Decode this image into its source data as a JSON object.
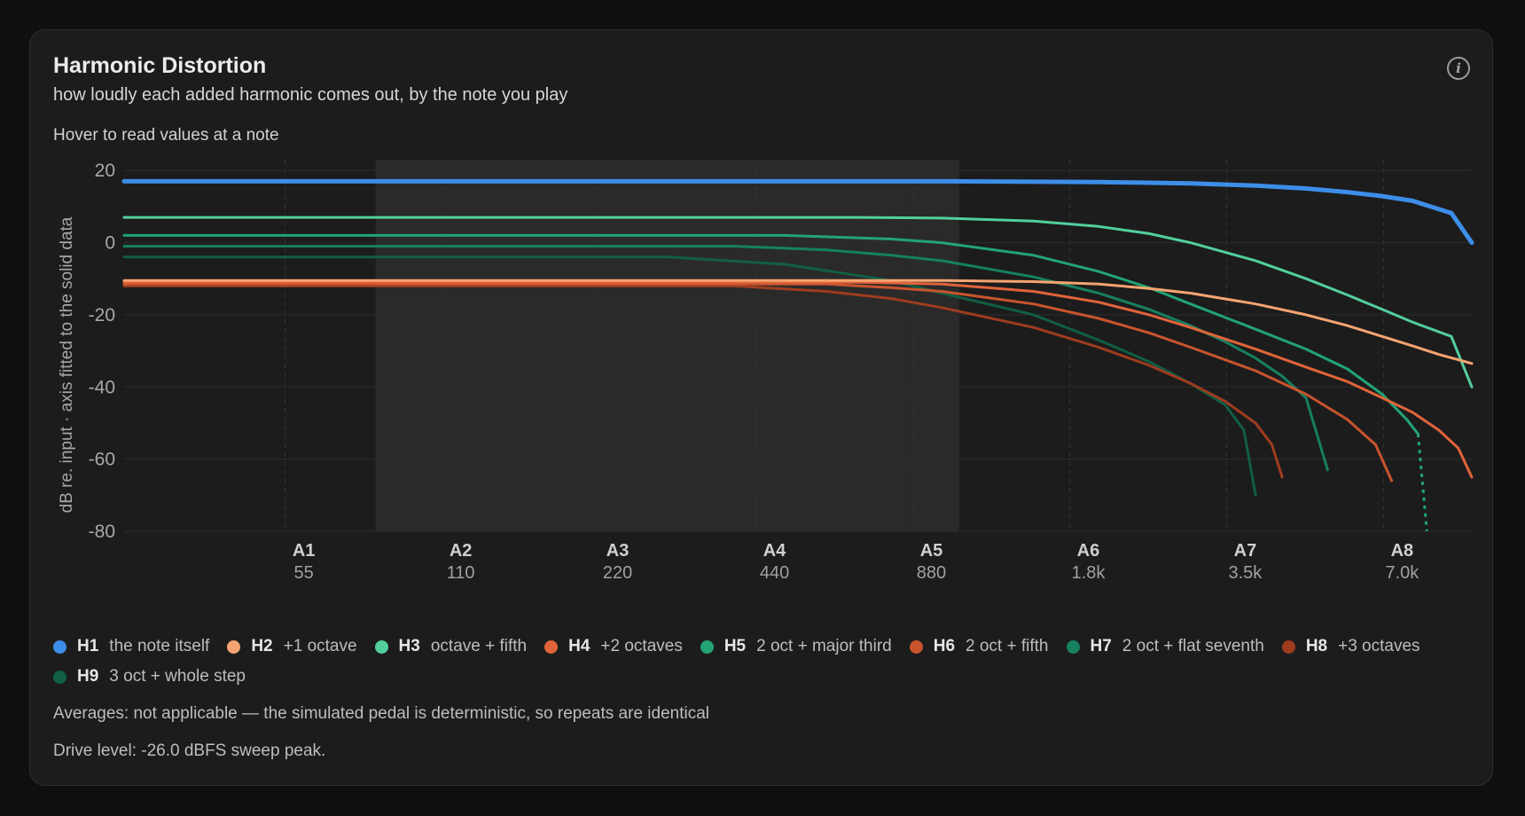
{
  "header": {
    "title": "Harmonic Distortion",
    "subtitle": "how loudly each added harmonic comes out, by the note you play",
    "hover_hint": "Hover to read values at a note",
    "info_glyph": "i"
  },
  "footer": {
    "averages_note": "Averages: not applicable — the simulated pedal is deterministic, so repeats are identical",
    "drive_note": "Drive level: -26.0 dBFS sweep peak."
  },
  "chart_data": {
    "type": "line",
    "title": "Harmonic Distortion",
    "ylabel": "dB re. input · axis fitted to the solid data",
    "xlabel": "",
    "x_scale": "log",
    "xlim": [
      27,
      10400
    ],
    "ylim": [
      -80,
      23
    ],
    "y_ticks": [
      20,
      0,
      -20,
      -40,
      -60,
      -80
    ],
    "y_tick_labels": [
      "20",
      "0",
      "-20",
      "-40",
      "-60",
      "-80"
    ],
    "x_ticks": [
      {
        "x": 55,
        "note": "A1",
        "freq": "55"
      },
      {
        "x": 110,
        "note": "A2",
        "freq": "110"
      },
      {
        "x": 220,
        "note": "A3",
        "freq": "220"
      },
      {
        "x": 440,
        "note": "A4",
        "freq": "440"
      },
      {
        "x": 880,
        "note": "A5",
        "freq": "880"
      },
      {
        "x": 1760,
        "note": "A6",
        "freq": "1.8k"
      },
      {
        "x": 3520,
        "note": "A7",
        "freq": "3.5k"
      },
      {
        "x": 7040,
        "note": "A8",
        "freq": "7.0k"
      }
    ],
    "highlight_range": [
      82,
      1080
    ],
    "grid": true,
    "legend_position": "bottom",
    "series": [
      {
        "name": "H1",
        "desc": "the note itself",
        "color": "#3d8ee8",
        "x": [
          27,
          1000,
          2000,
          3000,
          4000,
          5000,
          6000,
          7000,
          8000,
          9500,
          10400
        ],
        "y": [
          17,
          17,
          16.8,
          16.4,
          15.8,
          15,
          14,
          12.9,
          11.6,
          8.2,
          0
        ]
      },
      {
        "name": "H2",
        "desc": "+1 octave",
        "color": "#f5a471",
        "x": [
          27,
          1000,
          1500,
          2000,
          2500,
          3000,
          4000,
          5000,
          6000,
          7000,
          8000,
          9000,
          10400
        ],
        "y": [
          -10.5,
          -10.5,
          -10.8,
          -11.5,
          -12.7,
          -14,
          -17,
          -20,
          -23,
          -26,
          -28.6,
          -31,
          -33.5
        ]
      },
      {
        "name": "H3",
        "desc": "octave + fifth",
        "color": "#52cf9d",
        "x": [
          27,
          700,
          1000,
          1500,
          2000,
          2500,
          3000,
          4000,
          5000,
          6000,
          7000,
          8000,
          9500,
          10400
        ],
        "y": [
          7,
          7,
          6.8,
          6,
          4.5,
          2.5,
          0,
          -5,
          -10,
          -14.5,
          -18.5,
          -22,
          -26,
          -40
        ]
      },
      {
        "name": "H4",
        "desc": "+2 octaves",
        "color": "#e0643a",
        "x": [
          27,
          700,
          1000,
          1500,
          2000,
          2500,
          3000,
          4000,
          5000,
          6000,
          7000,
          8000,
          9000,
          9800,
          10400
        ],
        "y": [
          -11,
          -11,
          -11.5,
          -13.5,
          -16.5,
          -20,
          -23.5,
          -29.5,
          -34.5,
          -38.5,
          -43,
          -47,
          -52,
          -57,
          -65
        ]
      },
      {
        "name": "H5",
        "desc": "2 oct + major third",
        "color": "#22a474",
        "x": [
          27,
          500,
          800,
          1000,
          1500,
          2000,
          2500,
          3000,
          4000,
          5000,
          6000,
          7000,
          7800,
          8200
        ],
        "y": [
          2,
          2,
          1,
          0,
          -3.5,
          -8,
          -12.5,
          -17,
          -24,
          -29.5,
          -35,
          -42,
          -49,
          -53
        ]
      },
      {
        "name": "H6",
        "desc": "2 oct + fifth",
        "color": "#c8542e",
        "x": [
          27,
          600,
          800,
          1000,
          1500,
          2000,
          2500,
          3000,
          4000,
          5000,
          6000,
          6800,
          7300
        ],
        "y": [
          -11.5,
          -11.5,
          -12.5,
          -13.5,
          -17,
          -21,
          -25,
          -29,
          -35.5,
          -42,
          -49,
          -56,
          -66
        ]
      },
      {
        "name": "H7",
        "desc": "2 oct + flat seventh",
        "color": "#168060",
        "x": [
          27,
          400,
          600,
          800,
          1000,
          1500,
          2000,
          2500,
          3000,
          3500,
          4000,
          4500,
          5000,
          5500
        ],
        "y": [
          -1,
          -1,
          -2,
          -3.5,
          -5,
          -9.5,
          -14,
          -18.5,
          -23,
          -27.5,
          -32,
          -37,
          -43,
          -63
        ]
      },
      {
        "name": "H8",
        "desc": "+3 octaves",
        "color": "#9e3c20",
        "x": [
          27,
          400,
          600,
          800,
          1000,
          1500,
          2000,
          2500,
          3000,
          3500,
          4000,
          4300,
          4500
        ],
        "y": [
          -12,
          -12,
          -13.5,
          -15.5,
          -18,
          -23.5,
          -29,
          -34,
          -39,
          -44,
          -50,
          -56,
          -65
        ]
      },
      {
        "name": "H9",
        "desc": "3 oct + whole step",
        "color": "#115e44",
        "x": [
          27,
          300,
          500,
          800,
          1000,
          1500,
          2000,
          2500,
          3000,
          3500,
          3800,
          4000
        ],
        "y": [
          -4,
          -4,
          -6,
          -10.5,
          -14,
          -20,
          -27,
          -33,
          -39,
          -45,
          -52,
          -70
        ]
      }
    ]
  }
}
